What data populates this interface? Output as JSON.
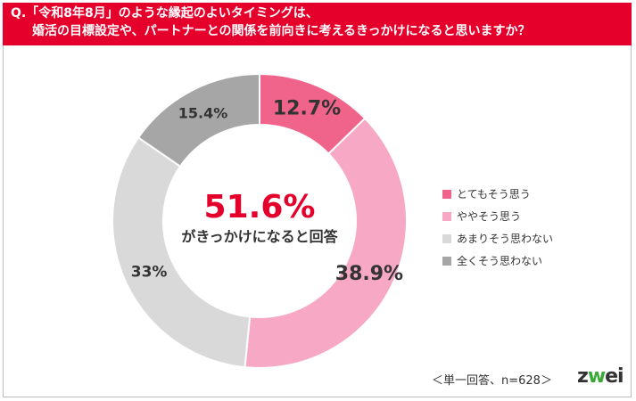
{
  "question": {
    "line1": "Q.「令和8年8月」のような縁起のよいタイミングは、",
    "line2": "婚活の目標設定や、パートナーとの関係を前向きに考えるきっかけになると思いますか？"
  },
  "chart_data": {
    "type": "pie",
    "style": "donut",
    "categories": [
      "とてもそう思う",
      "ややそう思う",
      "あまりそう思わない",
      "全くそう思わない"
    ],
    "values": [
      12.7,
      38.9,
      33,
      15.4
    ],
    "labels": [
      "12.7%",
      "38.9%",
      "33%",
      "15.4%"
    ],
    "colors": [
      "#f0648c",
      "#f7a8c4",
      "#d9d9d9",
      "#a6a6a6"
    ],
    "start_angle_deg": 0,
    "direction": "clockwise",
    "legend_position": "right"
  },
  "center": {
    "percent": "51.6%",
    "caption": "がきっかけになると回答"
  },
  "footnote": "＜単一回答、n=628＞",
  "logo": {
    "part1": "z",
    "part2": "w",
    "part3": "ei"
  }
}
